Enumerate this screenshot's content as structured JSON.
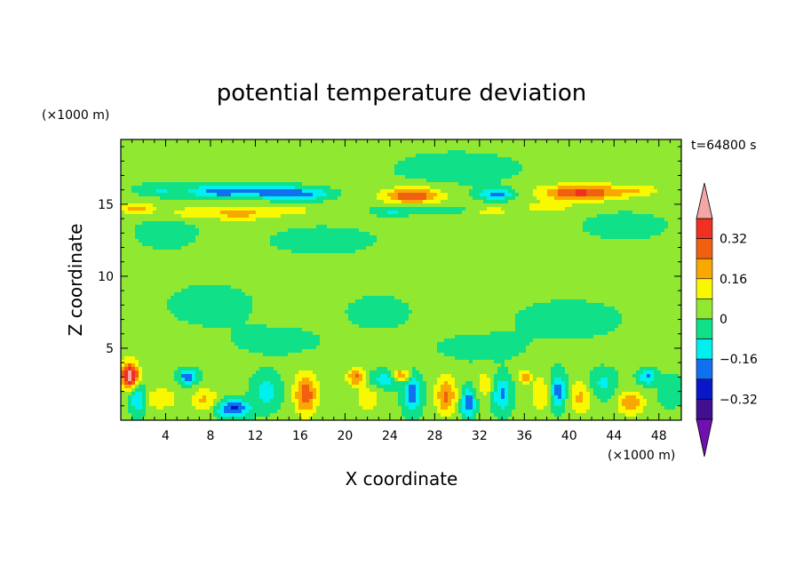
{
  "chart_data": {
    "type": "heatmap",
    "title": "potential temperature deviation",
    "xlabel": "X coordinate",
    "ylabel": "Z coordinate",
    "x_unit": "(×1000 m)",
    "y_unit": "(×1000 m)",
    "time_label": "t=64800 s",
    "xlim": [
      0,
      50
    ],
    "ylim": [
      0,
      19.5
    ],
    "x_ticks": [
      4,
      8,
      12,
      16,
      20,
      24,
      28,
      32,
      36,
      40,
      44,
      48
    ],
    "y_ticks": [
      5,
      10,
      15
    ],
    "background_level": 0.02,
    "colorbar": {
      "labels": [
        {
          "value": 0.32,
          "text": "0.32"
        },
        {
          "value": 0.16,
          "text": "0.16"
        },
        {
          "value": 0,
          "text": "0"
        },
        {
          "value": -0.16,
          "text": "−0.16"
        },
        {
          "value": -0.32,
          "text": "−0.32"
        }
      ],
      "levels": [
        {
          "min": 0.4,
          "max": null,
          "color": "#f4a6a6"
        },
        {
          "min": 0.32,
          "max": 0.4,
          "color": "#f03020"
        },
        {
          "min": 0.24,
          "max": 0.32,
          "color": "#f06010"
        },
        {
          "min": 0.16,
          "max": 0.24,
          "color": "#f8a800"
        },
        {
          "min": 0.08,
          "max": 0.16,
          "color": "#f8f800"
        },
        {
          "min": 0.0,
          "max": 0.08,
          "color": "#90e830"
        },
        {
          "min": -0.08,
          "max": 0.0,
          "color": "#10e088"
        },
        {
          "min": -0.16,
          "max": -0.08,
          "color": "#00f0f0"
        },
        {
          "min": -0.24,
          "max": -0.16,
          "color": "#1070f0"
        },
        {
          "min": -0.32,
          "max": -0.24,
          "color": "#0818c8"
        },
        {
          "min": -0.4,
          "max": -0.32,
          "color": "#401090"
        },
        {
          "min": null,
          "max": -0.4,
          "color": "#7010b0"
        }
      ]
    },
    "features": [
      {
        "x": 4,
        "z": 13.0,
        "sx": 3,
        "sz": 1.2,
        "a": -0.05
      },
      {
        "x": 18,
        "z": 12.5,
        "sx": 5,
        "sz": 1.0,
        "a": -0.05
      },
      {
        "x": 30,
        "z": 17.5,
        "sx": 6,
        "sz": 1.2,
        "a": -0.05
      },
      {
        "x": 45,
        "z": 13.5,
        "sx": 4,
        "sz": 1.0,
        "a": -0.05
      },
      {
        "x": 8,
        "z": 8.0,
        "sx": 4,
        "sz": 1.5,
        "a": -0.05
      },
      {
        "x": 23,
        "z": 7.5,
        "sx": 3,
        "sz": 1.2,
        "a": -0.05
      },
      {
        "x": 40,
        "z": 7.0,
        "sx": 5,
        "sz": 1.4,
        "a": -0.05
      },
      {
        "x": 14,
        "z": 5.5,
        "sx": 4,
        "sz": 1.0,
        "a": -0.05
      },
      {
        "x": 32,
        "z": 5.0,
        "sx": 4,
        "sz": 1.0,
        "a": -0.05
      },
      {
        "x": 3.5,
        "z": 16.0,
        "sx": 2.0,
        "sz": 0.45,
        "a": -0.1
      },
      {
        "x": 9.0,
        "z": 15.9,
        "sx": 2.8,
        "sz": 0.45,
        "a": -0.24
      },
      {
        "x": 14.0,
        "z": 15.8,
        "sx": 2.5,
        "sz": 0.45,
        "a": -0.22
      },
      {
        "x": 17.0,
        "z": 15.7,
        "sx": 2.0,
        "sz": 0.4,
        "a": -0.14
      },
      {
        "x": 26.0,
        "z": 15.6,
        "sx": 2.5,
        "sz": 0.55,
        "a": 0.3
      },
      {
        "x": 33.5,
        "z": 15.7,
        "sx": 1.5,
        "sz": 0.4,
        "a": -0.22
      },
      {
        "x": 41.0,
        "z": 15.8,
        "sx": 3.5,
        "sz": 0.55,
        "a": 0.32
      },
      {
        "x": 46.0,
        "z": 16.0,
        "sx": 2.0,
        "sz": 0.4,
        "a": 0.12
      },
      {
        "x": 38.0,
        "z": 14.8,
        "sx": 2.5,
        "sz": 0.35,
        "a": 0.1
      },
      {
        "x": 28.0,
        "z": 14.6,
        "sx": 3.0,
        "sz": 0.3,
        "a": -0.1
      },
      {
        "x": 1.5,
        "z": 14.7,
        "sx": 1.5,
        "sz": 0.45,
        "a": 0.18
      },
      {
        "x": 6.0,
        "z": 14.4,
        "sx": 2.0,
        "sz": 0.4,
        "a": 0.1
      },
      {
        "x": 10.5,
        "z": 14.4,
        "sx": 2.8,
        "sz": 0.5,
        "a": 0.18
      },
      {
        "x": 15.0,
        "z": 14.6,
        "sx": 2.0,
        "sz": 0.4,
        "a": 0.12
      },
      {
        "x": 24.0,
        "z": 14.5,
        "sx": 1.5,
        "sz": 0.3,
        "a": -0.1
      },
      {
        "x": 33.0,
        "z": 14.5,
        "sx": 1.8,
        "sz": 0.35,
        "a": 0.1
      },
      {
        "x": 0.8,
        "z": 3.1,
        "sx": 0.8,
        "sz": 0.9,
        "a": 0.45
      },
      {
        "x": 1.5,
        "z": 1.5,
        "sx": 0.7,
        "sz": 1.0,
        "a": -0.2
      },
      {
        "x": 3.5,
        "z": 1.5,
        "sx": 1.5,
        "sz": 0.7,
        "a": 0.14
      },
      {
        "x": 6.0,
        "z": 3.0,
        "sx": 0.8,
        "sz": 0.5,
        "a": -0.26
      },
      {
        "x": 7.5,
        "z": 1.4,
        "sx": 1.2,
        "sz": 0.8,
        "a": 0.16
      },
      {
        "x": 10.0,
        "z": 0.8,
        "sx": 1.5,
        "sz": 0.6,
        "a": -0.28
      },
      {
        "x": 13.0,
        "z": 2.0,
        "sx": 1.2,
        "sz": 1.2,
        "a": -0.14
      },
      {
        "x": 16.5,
        "z": 1.8,
        "sx": 1.0,
        "sz": 1.4,
        "a": 0.28
      },
      {
        "x": 21.0,
        "z": 3.0,
        "sx": 0.8,
        "sz": 0.6,
        "a": 0.24
      },
      {
        "x": 22.0,
        "z": 1.5,
        "sx": 1.0,
        "sz": 1.0,
        "a": 0.12
      },
      {
        "x": 23.5,
        "z": 2.8,
        "sx": 1.5,
        "sz": 0.6,
        "a": -0.14
      },
      {
        "x": 25.0,
        "z": 3.1,
        "sx": 0.7,
        "sz": 0.4,
        "a": 0.26
      },
      {
        "x": 26.0,
        "z": 1.8,
        "sx": 0.8,
        "sz": 1.2,
        "a": -0.24
      },
      {
        "x": 29.0,
        "z": 1.7,
        "sx": 0.9,
        "sz": 1.3,
        "a": 0.24
      },
      {
        "x": 31.0,
        "z": 1.2,
        "sx": 0.6,
        "sz": 1.0,
        "a": -0.26
      },
      {
        "x": 32.5,
        "z": 2.5,
        "sx": 0.8,
        "sz": 0.9,
        "a": 0.12
      },
      {
        "x": 34.0,
        "z": 1.8,
        "sx": 0.8,
        "sz": 1.2,
        "a": -0.2
      },
      {
        "x": 36.0,
        "z": 3.0,
        "sx": 0.6,
        "sz": 0.4,
        "a": 0.2
      },
      {
        "x": 37.5,
        "z": 1.8,
        "sx": 0.8,
        "sz": 1.2,
        "a": 0.14
      },
      {
        "x": 39.0,
        "z": 2.0,
        "sx": 0.7,
        "sz": 1.2,
        "a": -0.22
      },
      {
        "x": 41.0,
        "z": 1.6,
        "sx": 1.0,
        "sz": 1.1,
        "a": 0.16
      },
      {
        "x": 43.0,
        "z": 2.5,
        "sx": 1.2,
        "sz": 1.0,
        "a": -0.12
      },
      {
        "x": 45.5,
        "z": 1.2,
        "sx": 1.2,
        "sz": 0.8,
        "a": 0.2
      },
      {
        "x": 47.0,
        "z": 3.0,
        "sx": 0.8,
        "sz": 0.5,
        "a": -0.2
      },
      {
        "x": 49.0,
        "z": 2.0,
        "sx": 1.0,
        "sz": 1.0,
        "a": -0.1
      }
    ]
  }
}
